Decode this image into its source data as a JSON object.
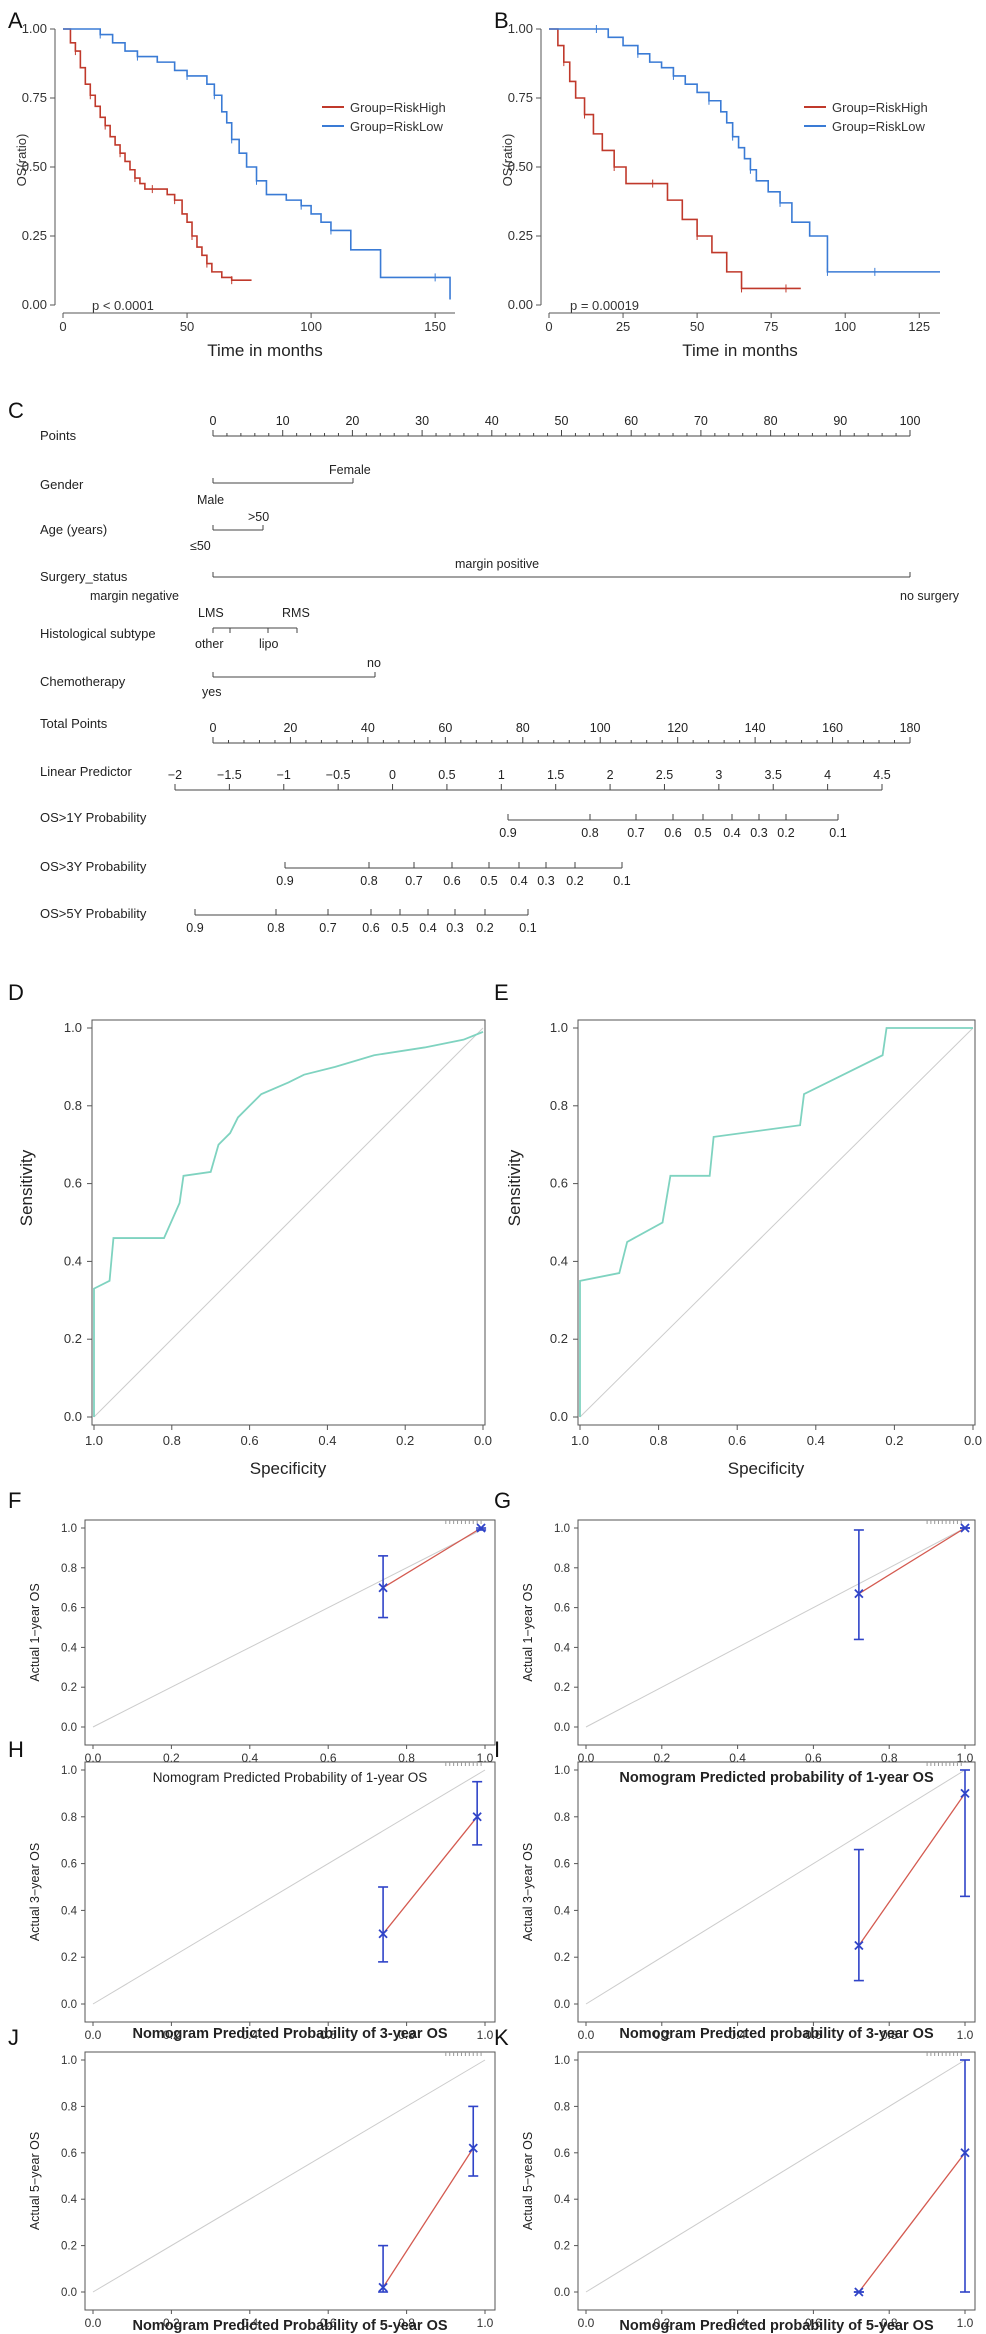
{
  "panels": {
    "A": "A",
    "B": "B",
    "C": "C",
    "D": "D",
    "E": "E",
    "F": "F",
    "G": "G",
    "H": "H",
    "I": "I",
    "J": "J",
    "K": "K"
  },
  "colors": {
    "high": "#c0392b",
    "low": "#3a7bd5",
    "roc": "#7fd3c0",
    "calib_line": "#d45a50",
    "calib_point": "#3044c8",
    "diag": "#cccccc"
  },
  "km": [
    {
      "id": "A",
      "p_text": "p < 0.0001",
      "xlabel": "Time in months",
      "ylabel": "OS(ratio)",
      "x_ticks": [
        "0",
        "50",
        "100",
        "150"
      ],
      "y_ticks": [
        "0.00",
        "0.25",
        "0.50",
        "0.75",
        "1.00"
      ],
      "xlim": [
        0,
        158
      ],
      "legend": [
        "Group=RiskHigh",
        "Group=RiskLow"
      ]
    },
    {
      "id": "B",
      "p_text": "p = 0.00019",
      "xlabel": "Time in months",
      "ylabel": "OS(ratio)",
      "x_ticks": [
        "0",
        "25",
        "50",
        "75",
        "100",
        "125"
      ],
      "y_ticks": [
        "0.00",
        "0.25",
        "0.50",
        "0.75",
        "1.00"
      ],
      "xlim": [
        0,
        132
      ],
      "legend": [
        "Group=RiskHigh",
        "Group=RiskLow"
      ]
    }
  ],
  "nomogram": {
    "rows": [
      {
        "label": "Points"
      },
      {
        "label": "Gender"
      },
      {
        "label": "Age (years)"
      },
      {
        "label": "Surgery_status"
      },
      {
        "label": "Histological subtype"
      },
      {
        "label": "Chemotherapy"
      },
      {
        "label": "Total Points"
      },
      {
        "label": "Linear Predictor"
      },
      {
        "label": "OS>1Y Probability"
      },
      {
        "label": "OS>3Y Probability"
      },
      {
        "label": "OS>5Y Probability"
      }
    ],
    "points_ticks": [
      "0",
      "10",
      "20",
      "30",
      "40",
      "50",
      "60",
      "70",
      "80",
      "90",
      "100"
    ],
    "gender": [
      "Male",
      "Female"
    ],
    "age": [
      "≤50",
      ">50"
    ],
    "surgery": [
      "margin negative",
      "margin positive",
      "no surgery"
    ],
    "subtype": [
      "LMS",
      "RMS",
      "other",
      "lipo"
    ],
    "chemo": [
      "yes",
      "no"
    ],
    "total_ticks": [
      "0",
      "20",
      "40",
      "60",
      "80",
      "100",
      "120",
      "140",
      "160",
      "180"
    ],
    "lp_ticks": [
      "−2",
      "−1.5",
      "−1",
      "−0.5",
      "0",
      "0.5",
      "1",
      "1.5",
      "2",
      "2.5",
      "3",
      "3.5",
      "4",
      "4.5"
    ],
    "p1_ticks": [
      "0.9",
      "0.8",
      "0.7",
      "0.6",
      "0.5",
      "0.4",
      "0.3",
      "0.2",
      "0.1"
    ],
    "p3_ticks": [
      "0.9",
      "0.8",
      "0.7",
      "0.6",
      "0.5",
      "0.4",
      "0.3",
      "0.2",
      "0.1"
    ],
    "p5_ticks": [
      "0.9",
      "0.8",
      "0.7",
      "0.6",
      "0.5",
      "0.4",
      "0.3",
      "0.2",
      "0.1"
    ]
  },
  "roc": [
    {
      "id": "D",
      "xlabel": "Specificity",
      "ylabel": "Sensitivity",
      "ticks": [
        "1.0",
        "0.8",
        "0.6",
        "0.4",
        "0.2",
        "0.0"
      ]
    },
    {
      "id": "E",
      "xlabel": "Specificity",
      "ylabel": "Sensitivity",
      "ticks": [
        "1.0",
        "0.8",
        "0.6",
        "0.4",
        "0.2",
        "0.0"
      ]
    }
  ],
  "calibration": [
    {
      "id": "F",
      "xlabel": "Nomogram Predicted Probability of 1-year OS",
      "ylabel": "Actual 1−year OS",
      "bold": false
    },
    {
      "id": "G",
      "xlabel": "Nomogram Predicted probability of 1-year OS",
      "ylabel": "Actual 1−year OS",
      "bold": true
    },
    {
      "id": "H",
      "xlabel": "Nomogram Predicted Probability of 3-year OS",
      "ylabel": "Actual 3−year OS",
      "bold": true
    },
    {
      "id": "I",
      "xlabel": "Nomogram Predicted probability of 3-year OS",
      "ylabel": "Actual 3−year OS",
      "bold": true
    },
    {
      "id": "J",
      "xlabel": "Nomogram Predicted Probability of 5-year OS",
      "ylabel": "Actual 5−year OS",
      "bold": true
    },
    {
      "id": "K",
      "xlabel": "Nomogram Predicted probability of 5-year OS",
      "ylabel": "Actual 5−year OS",
      "bold": true
    }
  ],
  "calib_ticks": [
    "0.0",
    "0.2",
    "0.4",
    "0.6",
    "0.8",
    "1.0"
  ],
  "chart_data": [
    {
      "type": "line",
      "title": "A",
      "xlabel": "Time in months",
      "ylabel": "OS(ratio)",
      "xlim": [
        0,
        158
      ],
      "ylim": [
        0,
        1
      ],
      "series": [
        {
          "name": "Group=RiskHigh",
          "x": [
            0,
            3,
            5,
            7,
            9,
            11,
            13,
            15,
            17,
            19,
            21,
            23,
            25,
            27,
            29,
            31,
            33,
            36,
            39,
            42,
            45,
            48,
            50,
            52,
            54,
            56,
            58,
            60,
            64,
            68,
            72,
            76
          ],
          "y": [
            1,
            0.95,
            0.92,
            0.86,
            0.8,
            0.76,
            0.72,
            0.68,
            0.65,
            0.61,
            0.58,
            0.55,
            0.52,
            0.49,
            0.46,
            0.44,
            0.42,
            0.42,
            0.42,
            0.4,
            0.38,
            0.33,
            0.3,
            0.25,
            0.21,
            0.18,
            0.15,
            0.12,
            0.1,
            0.09,
            0.09,
            0.09
          ]
        },
        {
          "name": "Group=RiskLow",
          "x": [
            0,
            6,
            15,
            20,
            25,
            30,
            38,
            45,
            50,
            55,
            58,
            61,
            64,
            66,
            68,
            71,
            74,
            78,
            82,
            90,
            96,
            100,
            104,
            108,
            116,
            128,
            150,
            156
          ],
          "y": [
            1,
            1,
            0.98,
            0.95,
            0.92,
            0.9,
            0.88,
            0.85,
            0.83,
            0.83,
            0.8,
            0.76,
            0.7,
            0.66,
            0.6,
            0.55,
            0.5,
            0.45,
            0.4,
            0.38,
            0.36,
            0.33,
            0.3,
            0.27,
            0.2,
            0.1,
            0.1,
            0.02
          ]
        }
      ]
    },
    {
      "type": "line",
      "title": "B",
      "xlabel": "Time in months",
      "ylabel": "OS(ratio)",
      "xlim": [
        0,
        132
      ],
      "ylim": [
        0,
        1
      ],
      "series": [
        {
          "name": "Group=RiskHigh",
          "x": [
            0,
            3,
            5,
            7,
            9,
            12,
            15,
            18,
            22,
            26,
            30,
            35,
            40,
            45,
            50,
            55,
            60,
            65,
            70,
            75,
            80,
            85
          ],
          "y": [
            1,
            0.94,
            0.88,
            0.81,
            0.75,
            0.69,
            0.62,
            0.56,
            0.5,
            0.44,
            0.44,
            0.44,
            0.38,
            0.31,
            0.25,
            0.19,
            0.12,
            0.06,
            0.06,
            0.06,
            0.06,
            0.06
          ]
        },
        {
          "name": "Group=RiskLow",
          "x": [
            0,
            8,
            16,
            20,
            25,
            30,
            34,
            38,
            42,
            46,
            50,
            54,
            58,
            60,
            62,
            64,
            66,
            68,
            70,
            74,
            78,
            82,
            88,
            94,
            96,
            100,
            110,
            120,
            132
          ],
          "y": [
            1,
            1,
            1,
            0.97,
            0.94,
            0.91,
            0.88,
            0.86,
            0.83,
            0.8,
            0.77,
            0.74,
            0.7,
            0.66,
            0.61,
            0.57,
            0.53,
            0.49,
            0.45,
            0.41,
            0.37,
            0.3,
            0.25,
            0.12,
            0.12,
            0.12,
            0.12,
            0.12,
            0.12
          ]
        }
      ]
    },
    {
      "type": "line",
      "title": "D",
      "xlabel": "Specificity",
      "ylabel": "Sensitivity",
      "xlim": [
        1,
        0
      ],
      "ylim": [
        0,
        1
      ],
      "series": [
        {
          "name": "ROC",
          "x": [
            1,
            1,
            0.96,
            0.95,
            0.82,
            0.78,
            0.77,
            0.7,
            0.68,
            0.65,
            0.63,
            0.6,
            0.57,
            0.5,
            0.46,
            0.38,
            0.28,
            0.15,
            0.05,
            0
          ],
          "y": [
            0,
            0.33,
            0.35,
            0.46,
            0.46,
            0.55,
            0.62,
            0.63,
            0.7,
            0.73,
            0.77,
            0.8,
            0.83,
            0.86,
            0.88,
            0.9,
            0.93,
            0.95,
            0.97,
            0.99
          ]
        }
      ]
    },
    {
      "type": "line",
      "title": "E",
      "xlabel": "Specificity",
      "ylabel": "Sensitivity",
      "xlim": [
        1,
        0
      ],
      "ylim": [
        0,
        1
      ],
      "series": [
        {
          "name": "ROC",
          "x": [
            1,
            1,
            0.9,
            0.88,
            0.79,
            0.77,
            0.67,
            0.66,
            0.44,
            0.43,
            0.35,
            0.23,
            0.22,
            0
          ],
          "y": [
            0,
            0.35,
            0.37,
            0.45,
            0.5,
            0.62,
            0.62,
            0.72,
            0.75,
            0.83,
            0.87,
            0.93,
            1,
            1
          ]
        }
      ]
    },
    {
      "type": "scatter",
      "title": "F",
      "xlabel": "Nomogram Predicted Probability of 1-year OS",
      "ylabel": "Actual 1−year OS",
      "xlim": [
        0,
        1
      ],
      "ylim": [
        0,
        1
      ],
      "series": [
        {
          "name": "calibration",
          "x": [
            0.74,
            0.99
          ],
          "y": [
            0.7,
            1.0
          ],
          "lower": [
            0.55,
            0.99
          ],
          "upper": [
            0.86,
            1.0
          ]
        }
      ]
    },
    {
      "type": "scatter",
      "title": "G",
      "xlabel": "Nomogram Predicted probability of 1-year OS",
      "ylabel": "Actual 1−year OS",
      "xlim": [
        0,
        1
      ],
      "ylim": [
        0,
        1
      ],
      "series": [
        {
          "name": "calibration",
          "x": [
            0.72,
            1.0
          ],
          "y": [
            0.67,
            1.0
          ],
          "lower": [
            0.44,
            1.0
          ],
          "upper": [
            0.99,
            1.0
          ]
        }
      ]
    },
    {
      "type": "scatter",
      "title": "H",
      "xlabel": "Nomogram Predicted Probability of 3-year OS",
      "ylabel": "Actual 3−year OS",
      "xlim": [
        0,
        1
      ],
      "ylim": [
        0,
        1
      ],
      "series": [
        {
          "name": "calibration",
          "x": [
            0.74,
            0.98
          ],
          "y": [
            0.3,
            0.8
          ],
          "lower": [
            0.18,
            0.68
          ],
          "upper": [
            0.5,
            0.95
          ]
        }
      ]
    },
    {
      "type": "scatter",
      "title": "I",
      "xlabel": "Nomogram Predicted probability of 3-year OS",
      "ylabel": "Actual 3−year OS",
      "xlim": [
        0,
        1
      ],
      "ylim": [
        0,
        1
      ],
      "series": [
        {
          "name": "calibration",
          "x": [
            0.72,
            1.0
          ],
          "y": [
            0.25,
            0.9
          ],
          "lower": [
            0.1,
            0.46
          ],
          "upper": [
            0.66,
            1.0
          ]
        }
      ]
    },
    {
      "type": "scatter",
      "title": "J",
      "xlabel": "Nomogram Predicted Probability of 5-year OS",
      "ylabel": "Actual 5−year OS",
      "xlim": [
        0,
        1
      ],
      "ylim": [
        0,
        1
      ],
      "series": [
        {
          "name": "calibration",
          "x": [
            0.74,
            0.97
          ],
          "y": [
            0.02,
            0.62
          ],
          "lower": [
            0.0,
            0.5
          ],
          "upper": [
            0.2,
            0.8
          ]
        }
      ]
    },
    {
      "type": "scatter",
      "title": "K",
      "xlabel": "Nomogram Predicted probability of 5-year OS",
      "ylabel": "Actual 5−year OS",
      "xlim": [
        0,
        1
      ],
      "ylim": [
        0,
        1
      ],
      "series": [
        {
          "name": "calibration",
          "x": [
            0.72,
            1.0
          ],
          "y": [
            0.0,
            0.6
          ],
          "lower": [
            0.0,
            0.0
          ],
          "upper": [
            0.0,
            1.0
          ]
        }
      ]
    }
  ]
}
